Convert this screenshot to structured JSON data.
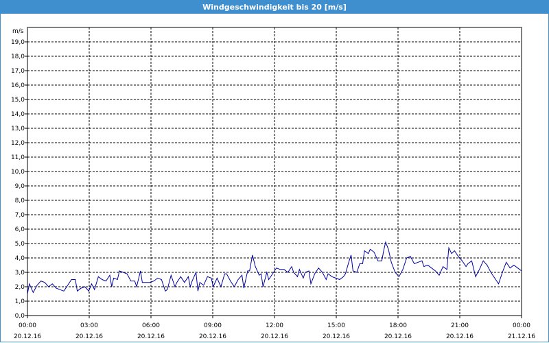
{
  "window": {
    "title": "Windgeschwindigkeit bis 20 [m/s]"
  },
  "chart_data": {
    "type": "line",
    "title": "Windgeschwindigkeit bis 20 [m/s]",
    "ylabel": "m/s",
    "ylim": [
      0,
      20
    ],
    "xlim_hours": [
      0,
      24
    ],
    "grid": true,
    "y_ticks": [
      "0,0",
      "1,0",
      "2,0",
      "3,0",
      "4,0",
      "5,0",
      "6,0",
      "7,0",
      "8,0",
      "9,0",
      "10,0",
      "11,0",
      "12,0",
      "13,0",
      "14,0",
      "15,0",
      "16,0",
      "17,0",
      "18,0",
      "19,0"
    ],
    "x_ticks": [
      {
        "time": "00:00",
        "date": "20.12.16"
      },
      {
        "time": "03:00",
        "date": "20.12.16"
      },
      {
        "time": "06:00",
        "date": "20.12.16"
      },
      {
        "time": "09:00",
        "date": "20.12.16"
      },
      {
        "time": "12:00",
        "date": "20.12.16"
      },
      {
        "time": "15:00",
        "date": "20.12.16"
      },
      {
        "time": "18:00",
        "date": "20.12.16"
      },
      {
        "time": "21:00",
        "date": "20.12.16"
      },
      {
        "time": "00:00",
        "date": "21.12.16"
      }
    ],
    "series": [
      {
        "color": "#0000a0",
        "points": [
          [
            0.0,
            1.5
          ],
          [
            0.1,
            2.2
          ],
          [
            0.3,
            1.6
          ],
          [
            0.5,
            2.1
          ],
          [
            0.7,
            2.4
          ],
          [
            0.9,
            2.3
          ],
          [
            1.1,
            2.0
          ],
          [
            1.3,
            2.2
          ],
          [
            1.5,
            1.9
          ],
          [
            1.7,
            1.8
          ],
          [
            1.9,
            1.7
          ],
          [
            2.1,
            2.1
          ],
          [
            2.3,
            2.5
          ],
          [
            2.5,
            2.5
          ],
          [
            2.6,
            1.7
          ],
          [
            2.8,
            1.9
          ],
          [
            3.0,
            2.0
          ],
          [
            3.2,
            1.7
          ],
          [
            3.35,
            2.2
          ],
          [
            3.5,
            1.8
          ],
          [
            3.7,
            2.7
          ],
          [
            3.9,
            2.5
          ],
          [
            4.1,
            2.4
          ],
          [
            4.3,
            2.8
          ],
          [
            4.4,
            2.0
          ],
          [
            4.5,
            2.6
          ],
          [
            4.7,
            2.5
          ],
          [
            4.8,
            3.1
          ],
          [
            5.0,
            3.0
          ],
          [
            5.2,
            2.9
          ],
          [
            5.4,
            2.4
          ],
          [
            5.6,
            2.4
          ],
          [
            5.7,
            2.0
          ],
          [
            5.9,
            3.1
          ],
          [
            6.0,
            2.3
          ],
          [
            6.2,
            2.3
          ],
          [
            6.4,
            2.3
          ],
          [
            6.6,
            2.4
          ],
          [
            6.8,
            2.6
          ],
          [
            7.0,
            2.5
          ],
          [
            7.2,
            1.7
          ],
          [
            7.3,
            1.8
          ],
          [
            7.5,
            2.8
          ],
          [
            7.7,
            2.0
          ],
          [
            7.8,
            2.3
          ],
          [
            8.0,
            2.7
          ],
          [
            8.2,
            2.3
          ],
          [
            8.4,
            2.7
          ],
          [
            8.5,
            2.0
          ],
          [
            8.6,
            2.4
          ],
          [
            8.8,
            3.0
          ],
          [
            8.9,
            1.7
          ],
          [
            9.0,
            2.3
          ],
          [
            9.2,
            2.1
          ],
          [
            9.4,
            2.7
          ],
          [
            9.6,
            2.6
          ],
          [
            9.7,
            2.0
          ],
          [
            9.9,
            2.6
          ],
          [
            10.1,
            2.0
          ],
          [
            10.3,
            2.9
          ],
          [
            10.4,
            2.9
          ],
          [
            10.6,
            2.4
          ],
          [
            10.8,
            2.0
          ],
          [
            11.0,
            2.5
          ],
          [
            11.2,
            2.8
          ],
          [
            11.3,
            1.9
          ],
          [
            11.5,
            3.1
          ],
          [
            11.6,
            3.1
          ],
          [
            11.75,
            4.2
          ],
          [
            11.9,
            3.4
          ],
          [
            12.1,
            2.8
          ],
          [
            12.2,
            2.9
          ],
          [
            12.3,
            2.0
          ],
          [
            12.5,
            3.0
          ],
          [
            12.6,
            2.5
          ],
          [
            12.8,
            2.9
          ],
          [
            13.0,
            3.3
          ],
          [
            13.2,
            3.2
          ],
          [
            13.4,
            3.2
          ],
          [
            13.6,
            3.0
          ],
          [
            13.8,
            3.4
          ],
          [
            13.9,
            3.0
          ],
          [
            14.1,
            2.7
          ],
          [
            14.2,
            3.2
          ],
          [
            14.4,
            2.6
          ],
          [
            14.5,
            3.0
          ],
          [
            14.7,
            3.1
          ],
          [
            14.8,
            2.2
          ],
          [
            15.0,
            2.9
          ],
          [
            15.2,
            3.3
          ],
          [
            15.4,
            3.0
          ],
          [
            15.6,
            2.5
          ],
          [
            15.7,
            2.9
          ],
          [
            15.9,
            2.7
          ],
          [
            16.1,
            2.6
          ],
          [
            16.3,
            2.5
          ],
          [
            16.5,
            2.7
          ],
          [
            16.6,
            2.9
          ],
          [
            16.8,
            3.8
          ],
          [
            16.9,
            4.2
          ],
          [
            17.0,
            3.1
          ],
          [
            17.2,
            3.0
          ],
          [
            17.35,
            3.6
          ],
          [
            17.5,
            3.6
          ],
          [
            17.6,
            4.5
          ],
          [
            17.8,
            4.3
          ],
          [
            17.9,
            4.6
          ],
          [
            18.1,
            4.4
          ],
          [
            18.3,
            3.8
          ],
          [
            18.5,
            3.8
          ],
          [
            18.6,
            4.5
          ],
          [
            18.7,
            5.1
          ],
          [
            18.85,
            4.6
          ],
          [
            19.0,
            3.7
          ],
          [
            19.2,
            3.0
          ],
          [
            19.4,
            2.7
          ],
          [
            19.6,
            3.2
          ],
          [
            19.8,
            4.0
          ],
          [
            20.0,
            4.1
          ],
          [
            20.2,
            3.6
          ],
          [
            20.4,
            3.7
          ],
          [
            20.6,
            3.8
          ],
          [
            20.7,
            3.4
          ],
          [
            20.9,
            3.5
          ],
          [
            21.1,
            3.3
          ],
          [
            21.3,
            3.1
          ],
          [
            21.5,
            2.8
          ],
          [
            21.7,
            3.4
          ],
          [
            21.8,
            3.3
          ],
          [
            21.9,
            3.2
          ],
          [
            22.0,
            4.7
          ],
          [
            22.15,
            4.3
          ],
          [
            22.3,
            4.5
          ],
          [
            22.5,
            4.1
          ],
          [
            22.7,
            3.8
          ],
          [
            22.9,
            3.4
          ],
          [
            23.0,
            3.6
          ],
          [
            23.2,
            3.8
          ],
          [
            23.4,
            2.7
          ],
          [
            23.6,
            3.2
          ],
          [
            23.8,
            3.8
          ],
          [
            24.0,
            3.5
          ],
          [
            24.2,
            3.0
          ],
          [
            24.4,
            2.6
          ],
          [
            24.6,
            2.2
          ],
          [
            24.8,
            3.0
          ],
          [
            25.0,
            3.7
          ],
          [
            25.2,
            3.3
          ],
          [
            25.4,
            3.5
          ],
          [
            25.6,
            3.3
          ],
          [
            25.8,
            3.1
          ]
        ]
      }
    ]
  }
}
